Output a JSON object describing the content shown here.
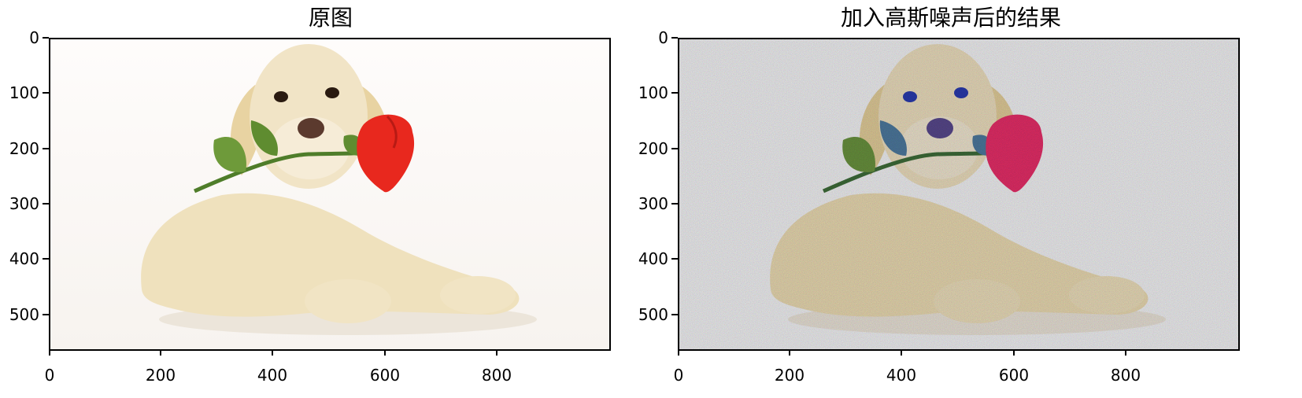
{
  "panels": [
    {
      "title": "原图",
      "x_ticks": [
        "0",
        "200",
        "400",
        "600",
        "800"
      ],
      "y_ticks": [
        "0",
        "100",
        "200",
        "300",
        "400",
        "500"
      ],
      "image_content": "puppy-with-rose"
    },
    {
      "title": "加入高斯噪声后的结果",
      "x_ticks": [
        "0",
        "200",
        "400",
        "600",
        "800"
      ],
      "y_ticks": [
        "0",
        "100",
        "200",
        "300",
        "400",
        "500"
      ],
      "image_content": "puppy-with-rose-gaussian-noise"
    }
  ],
  "image_extent": {
    "x": [
      0,
      1000
    ],
    "y": [
      0,
      563
    ]
  },
  "colors": {
    "background": "#ffffff",
    "dog": "#efe1bd",
    "rose": "#e8281e",
    "leaf": "#6e9a3a"
  }
}
